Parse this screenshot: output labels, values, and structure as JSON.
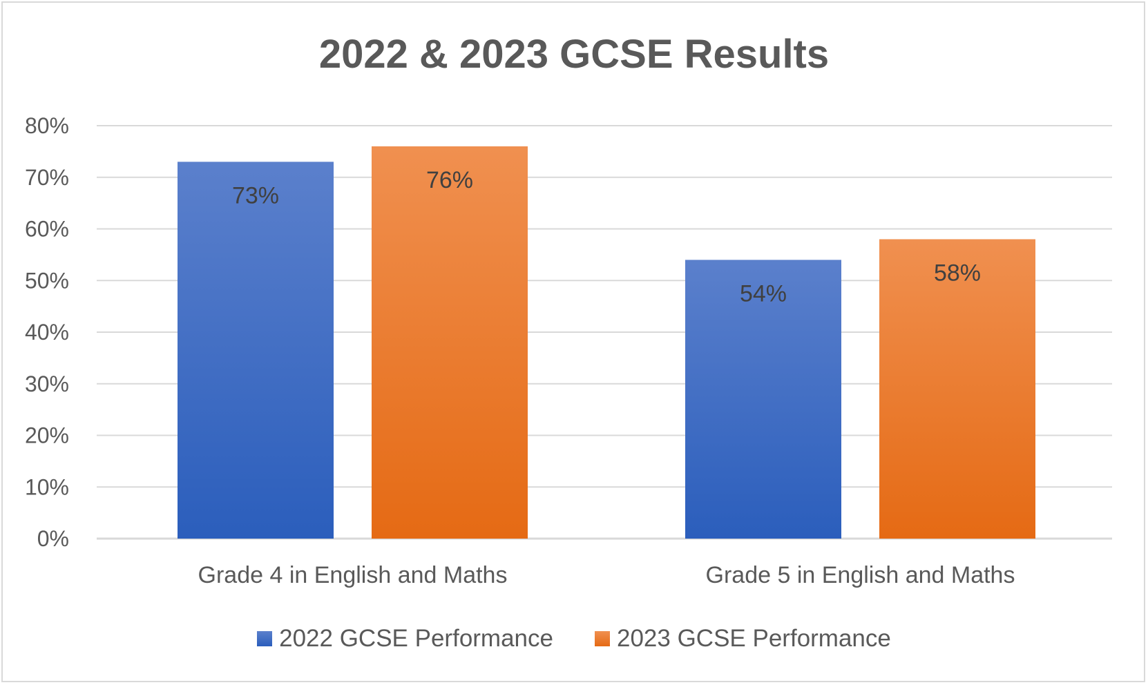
{
  "chart_data": {
    "type": "bar",
    "title": "2022 & 2023 GCSE Results",
    "categories": [
      "Grade 4 in English and Maths",
      "Grade 5 in English and Maths"
    ],
    "series": [
      {
        "name": "2022 GCSE Performance",
        "values": [
          73,
          54
        ],
        "color_top": "#5b80cc",
        "color_bottom": "#2b5ebc",
        "legend_color": "#4472c4"
      },
      {
        "name": "2023 GCSE Performance",
        "values": [
          76,
          58
        ],
        "color_top": "#f09050",
        "color_bottom": "#e56a14",
        "legend_color": "#ed7d31"
      }
    ],
    "value_labels": [
      [
        "73%",
        "54%"
      ],
      [
        "76%",
        "58%"
      ]
    ],
    "ylim": [
      0,
      80
    ],
    "yticks": [
      "0%",
      "10%",
      "20%",
      "30%",
      "40%",
      "50%",
      "60%",
      "70%",
      "80%"
    ],
    "grid": true,
    "legend_position": "bottom",
    "xlabel": "",
    "ylabel": ""
  }
}
